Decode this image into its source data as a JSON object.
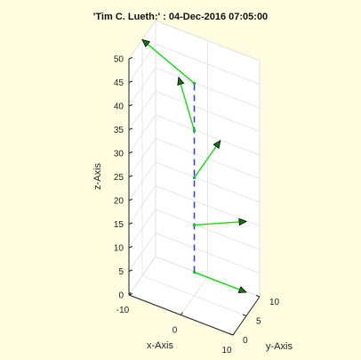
{
  "chart_data": {
    "type": "3d-line",
    "title": "'Tim C. Lueth:' : 04-Dec-2016 07:05:00",
    "xlabel": "x-Axis",
    "ylabel": "y-Axis",
    "zlabel": "z-Axis",
    "xlim": [
      -10,
      10
    ],
    "ylim": [
      0,
      10
    ],
    "zlim": [
      0,
      50
    ],
    "x_ticks": [
      -10,
      0,
      10
    ],
    "y_ticks": [
      0,
      5,
      10
    ],
    "z_ticks": [
      0,
      5,
      10,
      15,
      20,
      25,
      30,
      35,
      40,
      45,
      50
    ],
    "grid": true,
    "background_color": "#fffde0",
    "axes_color": "#ffffff",
    "spine": {
      "color": "#3333ff",
      "style": "dashed",
      "points": [
        [
          0,
          5,
          5
        ],
        [
          0,
          5,
          15
        ],
        [
          0,
          5,
          25
        ],
        [
          0,
          5,
          35
        ],
        [
          0,
          5,
          45
        ]
      ]
    },
    "vectors_color": "#00dd00",
    "arrowhead_color": "#0b7a0b",
    "vectors": [
      {
        "from": [
          0,
          5,
          5
        ],
        "to": [
          10,
          5,
          5
        ]
      },
      {
        "from": [
          0,
          5,
          15
        ],
        "to": [
          10,
          5,
          20
        ]
      },
      {
        "from": [
          0,
          5,
          25
        ],
        "to": [
          5,
          5,
          35
        ]
      },
      {
        "from": [
          0,
          5,
          35
        ],
        "to": [
          -3,
          5,
          45
        ]
      },
      {
        "from": [
          0,
          5,
          45
        ],
        "to": [
          -10,
          5,
          50
        ]
      }
    ]
  }
}
